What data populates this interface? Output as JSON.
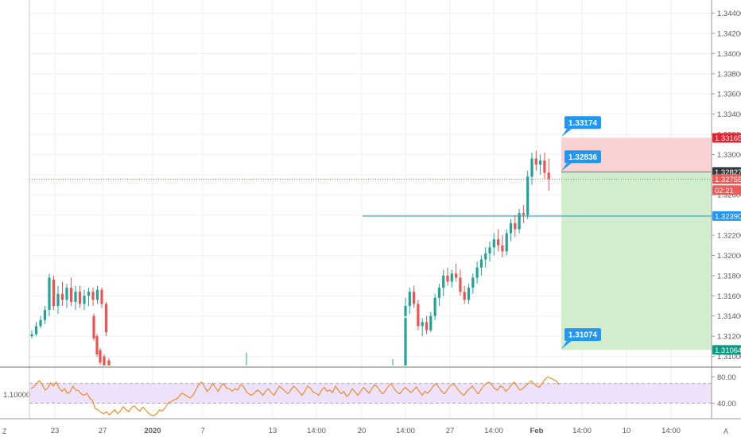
{
  "chart_data": {
    "type": "candlestick",
    "price_axis": {
      "ticks": [
        "1.34400",
        "1.34200",
        "1.34000",
        "1.33800",
        "1.33600",
        "1.33400",
        "1.33200",
        "1.33000",
        "1.32800",
        "1.32600",
        "1.32400",
        "1.32200",
        "1.32000",
        "1.31800",
        "1.31600",
        "1.31400",
        "1.31200",
        "1.31000"
      ],
      "range": [
        1.3091,
        1.3453
      ]
    },
    "time_axis": {
      "labels": [
        "23",
        "27",
        "2020",
        "7",
        "13",
        "14:00",
        "20",
        "14:00",
        "27",
        "14:00",
        "Feb",
        "14:00",
        "10",
        "14:00"
      ]
    },
    "price_tags": [
      {
        "name": "stop-loss",
        "text": "1.33165",
        "value": 1.33165,
        "color": "#e8212d"
      },
      {
        "name": "ask",
        "text": "1.32827",
        "value": 1.32827,
        "color": "#343a40"
      },
      {
        "name": "bid",
        "text": "1.32755",
        "value": 1.32755,
        "color": "#f05a5a"
      },
      {
        "name": "countdown",
        "text": "02:21",
        "value": 1.32647,
        "color": "#f05a5a"
      },
      {
        "name": "entry",
        "text": "1.32390",
        "value": 1.3239,
        "color": "#2196f3"
      },
      {
        "name": "take-profit",
        "text": "1.31064",
        "value": 1.31064,
        "color": "#089981"
      }
    ],
    "callouts": [
      {
        "name": "stop-callout",
        "text": "1.33174",
        "value": 1.33174
      },
      {
        "name": "current-callout",
        "text": "1.32836",
        "value": 1.32836
      },
      {
        "name": "target-callout",
        "text": "1.31074",
        "value": 1.31074
      }
    ],
    "horizontal_line": {
      "value": 1.3239,
      "color": "#26a0c9"
    },
    "position": {
      "entry": 1.32827,
      "stop": 1.33165,
      "target": 1.31064,
      "type": "short"
    },
    "candles": [
      [
        1.312,
        1.3126,
        1.3118,
        1.3122
      ],
      [
        1.3122,
        1.3134,
        1.312,
        1.313
      ],
      [
        1.313,
        1.314,
        1.3128,
        1.3136
      ],
      [
        1.3136,
        1.315,
        1.3132,
        1.3146
      ],
      [
        1.3146,
        1.3182,
        1.314,
        1.3178
      ],
      [
        1.3176,
        1.318,
        1.3146,
        1.315
      ],
      [
        1.315,
        1.317,
        1.3142,
        1.3162
      ],
      [
        1.3162,
        1.3174,
        1.315,
        1.3156
      ],
      [
        1.3156,
        1.3172,
        1.3148,
        1.3168
      ],
      [
        1.3168,
        1.3178,
        1.315,
        1.3154
      ],
      [
        1.3154,
        1.317,
        1.3146,
        1.3164
      ],
      [
        1.3164,
        1.317,
        1.3148,
        1.3152
      ],
      [
        1.3152,
        1.3166,
        1.3146,
        1.316
      ],
      [
        1.316,
        1.3168,
        1.315,
        1.3164
      ],
      [
        1.3164,
        1.3168,
        1.315,
        1.3156
      ],
      [
        1.3156,
        1.317,
        1.3152,
        1.3166
      ],
      [
        1.3166,
        1.3168,
        1.3148,
        1.3152
      ],
      [
        1.3152,
        1.3154,
        1.312,
        1.3124
      ],
      [
        1.3124,
        1.3128,
        1.3106,
        1.3112
      ],
      [
        1.3112,
        1.3116,
        1.3098,
        1.3104
      ],
      [
        1.3104,
        1.3108,
        1.3092,
        1.3096
      ],
      [
        1.3096,
        1.3098,
        1.308,
        1.3084
      ],
      [
        1.3084,
        1.3088,
        1.307,
        1.3076
      ],
      [
        1.3076,
        1.3084,
        1.3068,
        1.308
      ],
      [
        1.308,
        1.3082,
        1.306,
        1.3064
      ],
      [
        1.3064,
        1.3072,
        1.3056,
        1.3068
      ],
      [
        1.3068,
        1.3076,
        1.306,
        1.3072
      ],
      [
        1.3072,
        1.3074,
        1.3055,
        1.3058
      ],
      [
        1.3058,
        1.307,
        1.3052,
        1.3066
      ],
      [
        1.3066,
        1.307,
        1.305,
        1.3054
      ],
      [
        1.3054,
        1.3064,
        1.3048,
        1.306
      ],
      [
        1.306,
        1.3068,
        1.3052,
        1.3056
      ],
      [
        1.3056,
        1.307,
        1.305,
        1.3066
      ],
      [
        1.3066,
        1.3072,
        1.3058,
        1.3062
      ],
      [
        1.3062,
        1.308,
        1.3058,
        1.3076
      ],
      [
        1.3076,
        1.3084,
        1.3068,
        1.3072
      ],
      [
        1.3072,
        1.3086,
        1.3066,
        1.3082
      ],
      [
        1.3082,
        1.3088,
        1.307,
        1.3074
      ],
      [
        1.3074,
        1.3082,
        1.3064,
        1.3078
      ],
      [
        1.3078,
        1.3086,
        1.307,
        1.3074
      ],
      [
        1.3074,
        1.309,
        1.307,
        1.3086
      ],
      [
        1.3086,
        1.309,
        1.3074,
        1.3078
      ],
      [
        1.3078,
        1.3086,
        1.307,
        1.3082
      ],
      [
        1.3082,
        1.3092,
        1.3078,
        1.3088
      ],
      [
        1.3088,
        1.3096,
        1.3082,
        1.309
      ],
      [
        1.309,
        1.3098,
        1.3084,
        1.3094
      ],
      [
        1.3094,
        1.3106,
        1.309,
        1.31
      ],
      [
        1.31,
        1.3104,
        1.3086,
        1.309
      ],
      [
        1.309,
        1.31,
        1.3084,
        1.3096
      ],
      [
        1.3096,
        1.3104,
        1.3088,
        1.3092
      ],
      [
        1.3092,
        1.3108,
        1.3088,
        1.3104
      ],
      [
        1.3104,
        1.311,
        1.3092,
        1.3096
      ],
      [
        1.3096,
        1.3102,
        1.3086,
        1.3098
      ],
      [
        1.3098,
        1.3106,
        1.309,
        1.3094
      ],
      [
        1.3094,
        1.3104,
        1.3088,
        1.31
      ],
      [
        1.31,
        1.3112,
        1.3094,
        1.3106
      ],
      [
        1.3106,
        1.311,
        1.3092,
        1.3096
      ],
      [
        1.3096,
        1.3104,
        1.3086,
        1.31
      ],
      [
        1.31,
        1.3108,
        1.3094,
        1.3102
      ],
      [
        1.3102,
        1.311,
        1.3096,
        1.3098
      ],
      [
        1.3098,
        1.3104,
        1.3088,
        1.3092
      ],
      [
        1.3092,
        1.31,
        1.3084,
        1.3096
      ],
      [
        1.3096,
        1.3106,
        1.309,
        1.31
      ],
      [
        1.31,
        1.3104,
        1.3088,
        1.3092
      ],
      [
        1.3092,
        1.3098,
        1.308,
        1.3086
      ],
      [
        1.3086,
        1.3094,
        1.3078,
        1.309
      ],
      [
        1.309,
        1.3098,
        1.3082,
        1.3094
      ],
      [
        1.3094,
        1.3102,
        1.3086,
        1.309
      ],
      [
        1.309,
        1.3096,
        1.308,
        1.3092
      ],
      [
        1.3092,
        1.3104,
        1.3088,
        1.31
      ],
      [
        1.31,
        1.3108,
        1.3092,
        1.3096
      ],
      [
        1.3096,
        1.3104,
        1.309,
        1.3102
      ],
      [
        1.3102,
        1.3106,
        1.3088,
        1.3094
      ],
      [
        1.3094,
        1.3102,
        1.3086,
        1.3098
      ],
      [
        1.3098,
        1.3104,
        1.309,
        1.3094
      ],
      [
        1.3094,
        1.31,
        1.3084,
        1.3096
      ],
      [
        1.3096,
        1.3106,
        1.309,
        1.3102
      ],
      [
        1.3102,
        1.311,
        1.3096,
        1.31
      ],
      [
        1.3088,
        1.315,
        1.306,
        1.314
      ],
      [
        1.314,
        1.3158,
        1.3128,
        1.315
      ],
      [
        1.315,
        1.3168,
        1.3142,
        1.3164
      ],
      [
        1.3164,
        1.317,
        1.3148,
        1.3152
      ],
      [
        1.3152,
        1.3156,
        1.3126,
        1.313
      ],
      [
        1.313,
        1.3138,
        1.312,
        1.3134
      ],
      [
        1.3134,
        1.314,
        1.3122,
        1.3126
      ],
      [
        1.3126,
        1.3144,
        1.3124,
        1.314
      ],
      [
        1.314,
        1.3162,
        1.3136,
        1.3158
      ],
      [
        1.3158,
        1.3172,
        1.315,
        1.3168
      ],
      [
        1.3168,
        1.3186,
        1.316,
        1.318
      ],
      [
        1.318,
        1.3188,
        1.317,
        1.3174
      ],
      [
        1.3174,
        1.3186,
        1.3168,
        1.3182
      ],
      [
        1.3182,
        1.3192,
        1.3174,
        1.3178
      ],
      [
        1.3178,
        1.3186,
        1.316,
        1.3164
      ],
      [
        1.3164,
        1.317,
        1.3152,
        1.3156
      ],
      [
        1.3156,
        1.3172,
        1.3152,
        1.3168
      ],
      [
        1.3168,
        1.3182,
        1.3162,
        1.3178
      ],
      [
        1.3178,
        1.3194,
        1.3172,
        1.3188
      ],
      [
        1.3188,
        1.32,
        1.318,
        1.3196
      ],
      [
        1.3196,
        1.3208,
        1.3188,
        1.3202
      ],
      [
        1.3202,
        1.3214,
        1.3194,
        1.3208
      ],
      [
        1.3208,
        1.3222,
        1.32,
        1.3216
      ],
      [
        1.3216,
        1.3226,
        1.3204,
        1.321
      ],
      [
        1.321,
        1.322,
        1.3198,
        1.3204
      ],
      [
        1.3204,
        1.3226,
        1.32,
        1.3222
      ],
      [
        1.3222,
        1.3236,
        1.3214,
        1.3232
      ],
      [
        1.3232,
        1.324,
        1.3218,
        1.3226
      ],
      [
        1.3226,
        1.3246,
        1.3222,
        1.3242
      ],
      [
        1.3242,
        1.325,
        1.3232,
        1.324
      ],
      [
        1.324,
        1.3284,
        1.3236,
        1.3278
      ],
      [
        1.3278,
        1.3302,
        1.327,
        1.3296
      ],
      [
        1.3296,
        1.3304,
        1.3284,
        1.329
      ],
      [
        1.329,
        1.33,
        1.328,
        1.3294
      ],
      [
        1.3294,
        1.3302,
        1.3276,
        1.3282
      ],
      [
        1.3282,
        1.3296,
        1.3264,
        1.3276
      ]
    ],
    "volume_spikes": [
      0.35,
      0.55
    ],
    "rsi": {
      "label": "1.10000",
      "ticks": [
        "80.00",
        "40.00"
      ],
      "band": [
        40,
        70
      ],
      "values": [
        62,
        65,
        70,
        74,
        68,
        60,
        63,
        71,
        66,
        72,
        64,
        58,
        62,
        55,
        57,
        66,
        60,
        59,
        54,
        52,
        55,
        48,
        44,
        32,
        30,
        26,
        24,
        27,
        22,
        26,
        30,
        24,
        28,
        35,
        30,
        27,
        33,
        36,
        31,
        28,
        34,
        30,
        25,
        22,
        21,
        24,
        30,
        28,
        33,
        40,
        42,
        45,
        46,
        50,
        55,
        53,
        50,
        48,
        52,
        60,
        68,
        72,
        66,
        58,
        62,
        70,
        64,
        58,
        66,
        70,
        63,
        62,
        58,
        62,
        60,
        68,
        66,
        58,
        54,
        52,
        56,
        60,
        57,
        52,
        58,
        62,
        56,
        52,
        60,
        66,
        62,
        58,
        54,
        60,
        66,
        62,
        57,
        52,
        58,
        66,
        63,
        57,
        55,
        52,
        60,
        64,
        58,
        60,
        56,
        66,
        60,
        54,
        58,
        50,
        54,
        62,
        57,
        52,
        58,
        64,
        60,
        55,
        62,
        68,
        65,
        58,
        54,
        60,
        66,
        70,
        62,
        57,
        54,
        60,
        64,
        60,
        56,
        60,
        65,
        58,
        52,
        58,
        55,
        60,
        66,
        70,
        64,
        58,
        54,
        60,
        66,
        70,
        66,
        60,
        55,
        52,
        58,
        62,
        66,
        60,
        54,
        60,
        66,
        70,
        72,
        68,
        62,
        60,
        66,
        64,
        58,
        62,
        68,
        72,
        66,
        60,
        62,
        66,
        70,
        74,
        70,
        66,
        64,
        70,
        76,
        80,
        78,
        76,
        74,
        68
      ]
    }
  },
  "ui": {
    "corner_left": "Z",
    "corner_right": "A"
  }
}
